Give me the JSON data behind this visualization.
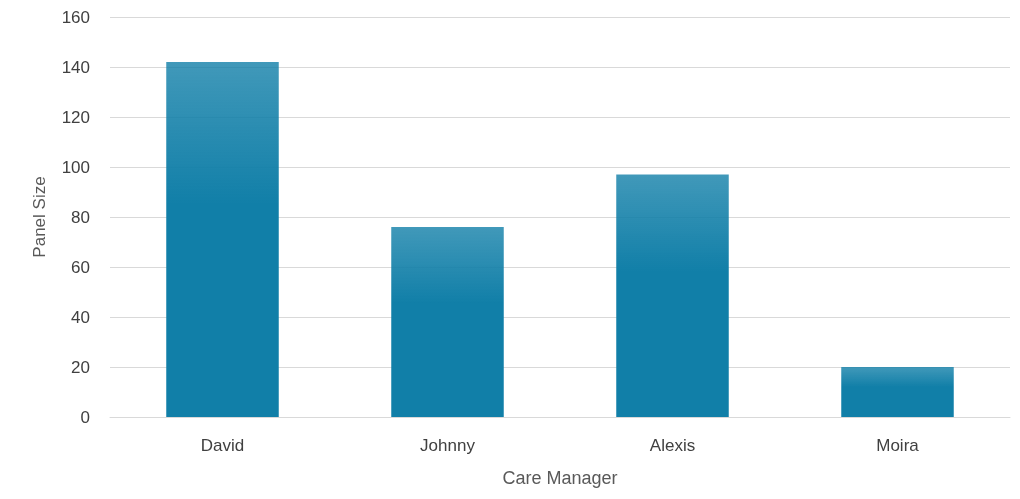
{
  "chart_data": {
    "type": "bar",
    "xlabel": "Care Manager",
    "ylabel": "Panel Size",
    "categories": [
      "David",
      "Johnny",
      "Alexis",
      "Moira"
    ],
    "values": [
      142,
      76,
      97,
      20
    ],
    "color": "#117fa8",
    "ylim": [
      0,
      160
    ],
    "yticks": [
      0,
      20,
      40,
      60,
      80,
      100,
      120,
      140,
      160
    ],
    "grid": "y"
  }
}
